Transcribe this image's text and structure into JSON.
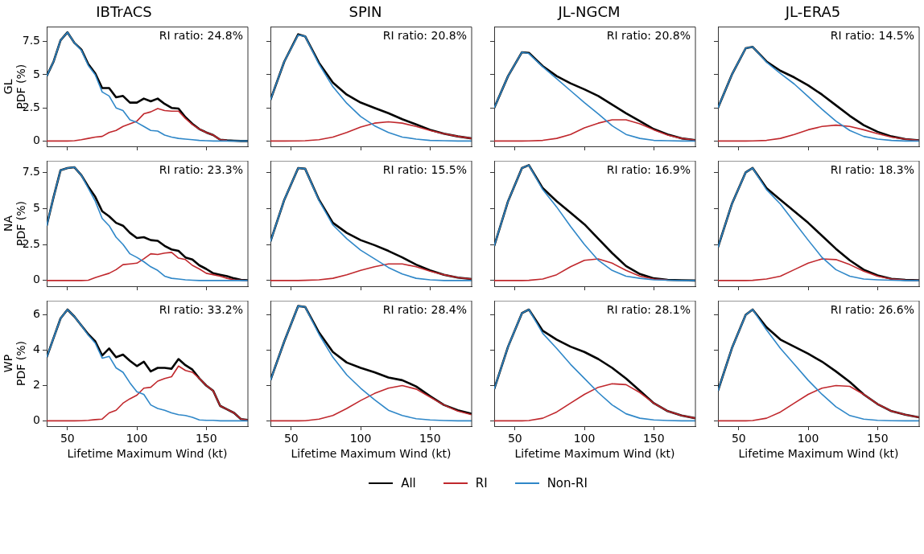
{
  "chart_data": [
    {
      "type": "line",
      "title": "IBTrACS",
      "ylabel": "GL\nPDF (%)",
      "annotations": [
        "RI ratio: 24.8%"
      ],
      "xlim": [
        35,
        180
      ],
      "xticks": [
        50,
        100,
        150
      ],
      "ylim": [
        -0.4,
        8.6
      ],
      "yticks": [
        0,
        2.5,
        5,
        7.5
      ],
      "tick_labels": "y",
      "legend": "bottom",
      "x": [
        35,
        40,
        45,
        50,
        55,
        60,
        65,
        70,
        75,
        80,
        85,
        90,
        95,
        100,
        105,
        110,
        115,
        120,
        125,
        130,
        135,
        140,
        145,
        150,
        155,
        160,
        165,
        170,
        175,
        180
      ],
      "series": [
        {
          "name": "All",
          "color": "#000000",
          "values": [
            4.9,
            6.0,
            7.6,
            8.2,
            7.4,
            6.9,
            5.8,
            5.1,
            4.0,
            4.0,
            3.3,
            3.4,
            2.9,
            2.9,
            3.2,
            3.0,
            3.2,
            2.8,
            2.5,
            2.45,
            1.8,
            1.3,
            0.9,
            0.65,
            0.45,
            0.1,
            0.05,
            0.02,
            0,
            0
          ]
        },
        {
          "name": "RI",
          "color": "#c0282d",
          "values": [
            0,
            0,
            0,
            0,
            0.02,
            0.1,
            0.2,
            0.3,
            0.35,
            0.65,
            0.8,
            1.1,
            1.3,
            1.5,
            2.05,
            2.2,
            2.45,
            2.3,
            2.25,
            2.25,
            1.7,
            1.25,
            0.9,
            0.65,
            0.45,
            0.1,
            0.05,
            null,
            null,
            null
          ]
        },
        {
          "name": "Non-RI",
          "color": "#2f87c8",
          "values": [
            4.9,
            6.0,
            7.6,
            8.2,
            7.4,
            6.85,
            5.7,
            5.0,
            3.7,
            3.4,
            2.5,
            2.3,
            1.6,
            1.4,
            1.1,
            0.8,
            0.75,
            0.45,
            0.3,
            0.2,
            0.15,
            0.1,
            0.05,
            0.02,
            0,
            0,
            0,
            0,
            0,
            0
          ]
        }
      ]
    },
    {
      "type": "line",
      "title": "SPIN",
      "annotations": [
        "RI ratio: 20.8%"
      ],
      "xlim": [
        35,
        180
      ],
      "xticks": [
        50,
        100,
        150
      ],
      "ylim": [
        -0.4,
        8.6
      ],
      "yticks": [
        0,
        2.5,
        5,
        7.5
      ],
      "tick_labels": false,
      "legend": "bottom",
      "x": [
        35,
        45,
        55,
        60,
        70,
        80,
        90,
        100,
        110,
        120,
        130,
        140,
        150,
        160,
        170,
        180
      ],
      "series": [
        {
          "name": "All",
          "color": "#000000",
          "values": [
            3.1,
            6.0,
            8.05,
            7.9,
            5.9,
            4.4,
            3.5,
            2.9,
            2.5,
            2.1,
            1.65,
            1.25,
            0.85,
            0.55,
            0.35,
            0.2
          ]
        },
        {
          "name": "RI",
          "color": "#c0282d",
          "values": [
            0,
            0,
            0.01,
            0.02,
            0.1,
            0.3,
            0.65,
            1.05,
            1.35,
            1.45,
            1.35,
            1.1,
            0.8,
            0.55,
            0.35,
            0.2
          ]
        },
        {
          "name": "Non-RI",
          "color": "#2f87c8",
          "values": [
            3.1,
            6.0,
            8.0,
            7.9,
            5.8,
            4.1,
            2.85,
            1.85,
            1.15,
            0.65,
            0.3,
            0.15,
            0.05,
            0.02,
            0,
            0
          ]
        }
      ]
    },
    {
      "type": "line",
      "title": "JL-NGCM",
      "annotations": [
        "RI ratio: 20.8%"
      ],
      "xlim": [
        35,
        180
      ],
      "xticks": [
        50,
        100,
        150
      ],
      "ylim": [
        -0.4,
        8.6
      ],
      "yticks": [
        0,
        2.5,
        5,
        7.5
      ],
      "tick_labels": false,
      "legend": "bottom",
      "x": [
        35,
        45,
        55,
        60,
        70,
        80,
        90,
        100,
        110,
        120,
        130,
        140,
        150,
        160,
        170,
        180
      ],
      "series": [
        {
          "name": "All",
          "color": "#000000",
          "values": [
            2.5,
            4.9,
            6.7,
            6.65,
            5.65,
            4.9,
            4.35,
            3.9,
            3.4,
            2.75,
            2.1,
            1.5,
            0.9,
            0.5,
            0.2,
            0.07
          ]
        },
        {
          "name": "RI",
          "color": "#c0282d",
          "values": [
            0,
            0,
            0,
            0.01,
            0.05,
            0.2,
            0.5,
            1.0,
            1.35,
            1.6,
            1.6,
            1.3,
            0.85,
            0.45,
            0.2,
            0.07
          ]
        },
        {
          "name": "Non-RI",
          "color": "#2f87c8",
          "values": [
            2.5,
            4.9,
            6.7,
            6.6,
            5.6,
            4.7,
            3.8,
            2.9,
            2.05,
            1.15,
            0.5,
            0.2,
            0.05,
            0.02,
            0,
            0
          ]
        }
      ]
    },
    {
      "type": "line",
      "title": "JL-ERA5",
      "annotations": [
        "RI ratio: 14.5%"
      ],
      "xlim": [
        35,
        180
      ],
      "xticks": [
        50,
        100,
        150
      ],
      "ylim": [
        -0.4,
        8.6
      ],
      "yticks": [
        0,
        2.5,
        5,
        7.5
      ],
      "tick_labels": false,
      "legend": "bottom",
      "x": [
        35,
        45,
        55,
        60,
        70,
        80,
        90,
        100,
        110,
        120,
        130,
        140,
        150,
        160,
        170,
        180
      ],
      "series": [
        {
          "name": "All",
          "color": "#000000",
          "values": [
            2.5,
            5.0,
            7.0,
            7.1,
            6.0,
            5.3,
            4.8,
            4.2,
            3.5,
            2.7,
            1.9,
            1.2,
            0.7,
            0.35,
            0.15,
            0.05
          ]
        },
        {
          "name": "RI",
          "color": "#c0282d",
          "values": [
            0,
            0,
            0,
            0.01,
            0.05,
            0.2,
            0.5,
            0.85,
            1.1,
            1.2,
            1.1,
            0.85,
            0.55,
            0.3,
            0.15,
            0.05
          ]
        },
        {
          "name": "Non-RI",
          "color": "#2f87c8",
          "values": [
            2.5,
            5.0,
            7.0,
            7.1,
            5.95,
            5.1,
            4.3,
            3.35,
            2.4,
            1.5,
            0.8,
            0.35,
            0.15,
            0.05,
            0,
            0
          ]
        }
      ]
    },
    {
      "type": "line",
      "ylabel": "NA\nPDF (%)",
      "annotations": [
        "RI ratio: 23.3%"
      ],
      "xlim": [
        35,
        180
      ],
      "xticks": [
        50,
        100,
        150
      ],
      "ylim": [
        -0.4,
        8.3
      ],
      "yticks": [
        0,
        2.5,
        5,
        7.5
      ],
      "tick_labels": "y",
      "legend": "bottom",
      "x": [
        35,
        40,
        45,
        50,
        55,
        60,
        65,
        70,
        75,
        80,
        85,
        90,
        95,
        100,
        105,
        110,
        115,
        120,
        125,
        130,
        135,
        140,
        145,
        150,
        155,
        160,
        165,
        170,
        175,
        180
      ],
      "series": [
        {
          "name": "All",
          "color": "#000000",
          "values": [
            3.8,
            5.8,
            7.65,
            7.8,
            7.85,
            7.3,
            6.5,
            5.8,
            4.8,
            4.45,
            4.0,
            3.8,
            3.3,
            2.95,
            3.0,
            2.8,
            2.75,
            2.4,
            2.15,
            2.05,
            1.6,
            1.45,
            1.05,
            0.8,
            0.5,
            0.4,
            0.3,
            0.15,
            0.05,
            0.02
          ]
        },
        {
          "name": "RI",
          "color": "#c0282d",
          "values": [
            0,
            0,
            0,
            0,
            0,
            0,
            0.02,
            0.2,
            0.35,
            0.5,
            0.75,
            1.1,
            1.15,
            1.2,
            1.5,
            1.85,
            1.8,
            1.9,
            1.95,
            1.55,
            1.45,
            1.05,
            0.8,
            0.5,
            0.4,
            0.3,
            0.15,
            0.05,
            0.02,
            0
          ]
        },
        {
          "name": "Non-RI",
          "color": "#2f87c8",
          "values": [
            3.8,
            5.8,
            7.65,
            7.8,
            7.85,
            7.3,
            6.4,
            5.5,
            4.3,
            3.8,
            3.0,
            2.5,
            1.85,
            1.6,
            1.3,
            0.95,
            0.7,
            0.3,
            0.15,
            0.1,
            0.05,
            0.02,
            0,
            0,
            0,
            0,
            0,
            0,
            0,
            0
          ]
        }
      ]
    },
    {
      "type": "line",
      "annotations": [
        "RI ratio: 15.5%"
      ],
      "xlim": [
        35,
        180
      ],
      "xticks": [
        50,
        100,
        150
      ],
      "ylim": [
        -0.4,
        8.3
      ],
      "yticks": [
        0,
        2.5,
        5,
        7.5
      ],
      "tick_labels": false,
      "legend": "bottom",
      "x": [
        35,
        45,
        55,
        60,
        70,
        80,
        90,
        100,
        110,
        120,
        130,
        140,
        150,
        160,
        170,
        180
      ],
      "series": [
        {
          "name": "All",
          "color": "#000000",
          "values": [
            2.7,
            5.6,
            7.8,
            7.75,
            5.6,
            4.0,
            3.3,
            2.8,
            2.45,
            2.05,
            1.6,
            1.1,
            0.7,
            0.4,
            0.2,
            0.1
          ]
        },
        {
          "name": "RI",
          "color": "#c0282d",
          "values": [
            0,
            0,
            0,
            0.01,
            0.05,
            0.15,
            0.4,
            0.7,
            0.95,
            1.15,
            1.15,
            0.95,
            0.65,
            0.4,
            0.2,
            0.1
          ]
        },
        {
          "name": "Non-RI",
          "color": "#2f87c8",
          "values": [
            2.7,
            5.6,
            7.8,
            7.75,
            5.55,
            3.85,
            2.9,
            2.1,
            1.5,
            0.9,
            0.45,
            0.15,
            0.05,
            0,
            0,
            0
          ]
        }
      ]
    },
    {
      "type": "line",
      "annotations": [
        "RI ratio: 16.9%"
      ],
      "xlim": [
        35,
        180
      ],
      "xticks": [
        50,
        100,
        150
      ],
      "ylim": [
        -0.4,
        8.3
      ],
      "yticks": [
        0,
        2.5,
        5,
        7.5
      ],
      "tick_labels": false,
      "legend": "bottom",
      "x": [
        35,
        45,
        55,
        60,
        70,
        80,
        90,
        100,
        110,
        120,
        130,
        140,
        150,
        160,
        170,
        180
      ],
      "series": [
        {
          "name": "All",
          "color": "#000000",
          "values": [
            2.4,
            5.5,
            7.8,
            8.0,
            6.4,
            5.5,
            4.7,
            3.9,
            2.9,
            1.9,
            1.0,
            0.45,
            0.15,
            0.05,
            0.02,
            0
          ]
        },
        {
          "name": "RI",
          "color": "#c0282d",
          "values": [
            0,
            0,
            0,
            0.01,
            0.1,
            0.4,
            0.95,
            1.4,
            1.5,
            1.2,
            0.7,
            0.3,
            0.1,
            0.03,
            null,
            null
          ]
        },
        {
          "name": "Non-RI",
          "color": "#2f87c8",
          "values": [
            2.4,
            5.5,
            7.8,
            8.0,
            6.3,
            5.1,
            3.75,
            2.5,
            1.4,
            0.7,
            0.3,
            0.15,
            0.05,
            0.02,
            0,
            0
          ]
        }
      ]
    },
    {
      "type": "line",
      "annotations": [
        "RI ratio: 18.3%"
      ],
      "xlim": [
        35,
        180
      ],
      "xticks": [
        50,
        100,
        150
      ],
      "ylim": [
        -0.4,
        8.3
      ],
      "yticks": [
        0,
        2.5,
        5,
        7.5
      ],
      "tick_labels": false,
      "legend": "bottom",
      "x": [
        35,
        45,
        55,
        60,
        70,
        80,
        90,
        100,
        110,
        120,
        130,
        140,
        150,
        160,
        170,
        180
      ],
      "series": [
        {
          "name": "All",
          "color": "#000000",
          "values": [
            2.3,
            5.3,
            7.5,
            7.8,
            6.4,
            5.6,
            4.8,
            4.0,
            3.1,
            2.2,
            1.4,
            0.75,
            0.35,
            0.12,
            0.04,
            0.01
          ]
        },
        {
          "name": "RI",
          "color": "#c0282d",
          "values": [
            0,
            0,
            0,
            0.01,
            0.1,
            0.3,
            0.75,
            1.2,
            1.5,
            1.45,
            1.1,
            0.65,
            0.3,
            0.1,
            0.03,
            0.01
          ]
        },
        {
          "name": "Non-RI",
          "color": "#2f87c8",
          "values": [
            2.3,
            5.3,
            7.5,
            7.8,
            6.3,
            5.3,
            4.05,
            2.8,
            1.6,
            0.75,
            0.3,
            0.1,
            0.05,
            0.02,
            0,
            0
          ]
        }
      ]
    },
    {
      "type": "line",
      "xlabel": "Lifetime Maximum Wind (kt)",
      "ylabel": "WP\nPDF (%)",
      "annotations": [
        "RI ratio: 33.2%"
      ],
      "xlim": [
        35,
        180
      ],
      "xticks": [
        50,
        100,
        150
      ],
      "ylim": [
        -0.3,
        6.8
      ],
      "yticks": [
        0,
        2,
        4,
        6
      ],
      "legend": "bottom",
      "x": [
        35,
        40,
        45,
        50,
        55,
        60,
        65,
        70,
        75,
        80,
        85,
        90,
        95,
        100,
        105,
        110,
        115,
        120,
        125,
        130,
        135,
        140,
        145,
        150,
        155,
        160,
        165,
        170,
        175,
        180
      ],
      "series": [
        {
          "name": "All",
          "color": "#000000",
          "values": [
            3.6,
            4.7,
            5.8,
            6.3,
            5.9,
            5.4,
            4.9,
            4.5,
            3.7,
            4.1,
            3.6,
            3.75,
            3.4,
            3.1,
            3.35,
            2.8,
            3.0,
            3.0,
            2.95,
            3.5,
            3.15,
            2.9,
            2.4,
            2.0,
            1.7,
            0.85,
            0.65,
            0.45,
            0.1,
            0.05
          ]
        },
        {
          "name": "RI",
          "color": "#c0282d",
          "values": [
            0,
            0,
            0,
            0,
            0,
            0.01,
            0.03,
            0.07,
            0.1,
            0.45,
            0.6,
            1.0,
            1.25,
            1.45,
            1.85,
            1.9,
            2.25,
            2.4,
            2.5,
            3.1,
            2.85,
            2.75,
            2.4,
            2.0,
            1.7,
            0.85,
            0.65,
            0.45,
            0.1,
            0.05
          ]
        },
        {
          "name": "Non-RI",
          "color": "#2f87c8",
          "values": [
            3.6,
            4.7,
            5.8,
            6.3,
            5.9,
            5.4,
            4.85,
            4.4,
            3.55,
            3.65,
            3.0,
            2.75,
            2.15,
            1.65,
            1.5,
            0.9,
            0.7,
            0.6,
            0.45,
            0.35,
            0.3,
            0.2,
            0.05,
            0.03,
            0.03,
            0,
            0,
            0,
            0,
            0
          ]
        }
      ]
    },
    {
      "type": "line",
      "xlabel": "Lifetime Maximum Wind (kt)",
      "annotations": [
        "RI ratio: 28.4%"
      ],
      "xlim": [
        35,
        180
      ],
      "xticks": [
        50,
        100,
        150
      ],
      "ylim": [
        -0.3,
        6.8
      ],
      "yticks": [
        0,
        2,
        4,
        6
      ],
      "tick_labels": "x",
      "legend": "bottom",
      "x": [
        35,
        45,
        55,
        60,
        70,
        80,
        90,
        100,
        110,
        120,
        130,
        140,
        150,
        160,
        170,
        180
      ],
      "series": [
        {
          "name": "All",
          "color": "#000000",
          "values": [
            2.3,
            4.5,
            6.5,
            6.45,
            5.0,
            3.9,
            3.3,
            3.0,
            2.75,
            2.45,
            2.3,
            1.95,
            1.4,
            0.9,
            0.6,
            0.4
          ]
        },
        {
          "name": "RI",
          "color": "#c0282d",
          "values": [
            0,
            0,
            0,
            0.01,
            0.1,
            0.3,
            0.7,
            1.15,
            1.55,
            1.85,
            2.0,
            1.8,
            1.35,
            0.9,
            0.55,
            0.35
          ]
        },
        {
          "name": "Non-RI",
          "color": "#2f87c8",
          "values": [
            2.3,
            4.5,
            6.5,
            6.45,
            4.9,
            3.6,
            2.6,
            1.85,
            1.2,
            0.6,
            0.3,
            0.12,
            0.05,
            0.02,
            0,
            0
          ]
        }
      ]
    },
    {
      "type": "line",
      "xlabel": "Lifetime Maximum Wind (kt)",
      "annotations": [
        "RI ratio: 28.1%"
      ],
      "xlim": [
        35,
        180
      ],
      "xticks": [
        50,
        100,
        150
      ],
      "ylim": [
        -0.3,
        6.8
      ],
      "yticks": [
        0,
        2,
        4,
        6
      ],
      "tick_labels": "x",
      "legend": "bottom",
      "x": [
        35,
        45,
        55,
        60,
        70,
        80,
        90,
        100,
        110,
        120,
        130,
        140,
        150,
        160,
        170,
        180
      ],
      "series": [
        {
          "name": "All",
          "color": "#000000",
          "values": [
            1.8,
            4.2,
            6.1,
            6.3,
            5.1,
            4.6,
            4.2,
            3.9,
            3.5,
            3.0,
            2.4,
            1.7,
            1.0,
            0.55,
            0.3,
            0.15
          ]
        },
        {
          "name": "RI",
          "color": "#c0282d",
          "values": [
            0,
            0,
            0,
            0.02,
            0.15,
            0.5,
            1.0,
            1.5,
            1.9,
            2.1,
            2.05,
            1.6,
            1.0,
            0.55,
            0.3,
            0.15
          ]
        },
        {
          "name": "Non-RI",
          "color": "#2f87c8",
          "values": [
            1.8,
            4.2,
            6.1,
            6.3,
            4.95,
            4.1,
            3.2,
            2.4,
            1.6,
            0.9,
            0.4,
            0.15,
            0.05,
            0.02,
            0,
            0
          ]
        }
      ]
    },
    {
      "type": "line",
      "xlabel": "Lifetime Maximum Wind (kt)",
      "annotations": [
        "RI ratio: 26.6%"
      ],
      "xlim": [
        35,
        180
      ],
      "xticks": [
        50,
        100,
        150
      ],
      "ylim": [
        -0.3,
        6.8
      ],
      "yticks": [
        0,
        2,
        4,
        6
      ],
      "tick_labels": "x",
      "legend": "bottom",
      "x": [
        35,
        45,
        55,
        60,
        70,
        80,
        90,
        100,
        110,
        120,
        130,
        140,
        150,
        160,
        170,
        180
      ],
      "series": [
        {
          "name": "All",
          "color": "#000000",
          "values": [
            1.7,
            4.1,
            6.0,
            6.3,
            5.3,
            4.6,
            4.2,
            3.8,
            3.35,
            2.8,
            2.2,
            1.5,
            0.95,
            0.55,
            0.35,
            0.2
          ]
        },
        {
          "name": "RI",
          "color": "#c0282d",
          "values": [
            0,
            0,
            0,
            0.02,
            0.15,
            0.5,
            1.0,
            1.5,
            1.85,
            2.0,
            1.95,
            1.5,
            0.95,
            0.55,
            0.35,
            0.2
          ]
        },
        {
          "name": "Non-RI",
          "color": "#2f87c8",
          "values": [
            1.7,
            4.1,
            6.0,
            6.3,
            5.15,
            4.1,
            3.2,
            2.3,
            1.5,
            0.8,
            0.3,
            0.1,
            0.03,
            0.01,
            0,
            0
          ]
        }
      ]
    }
  ]
}
